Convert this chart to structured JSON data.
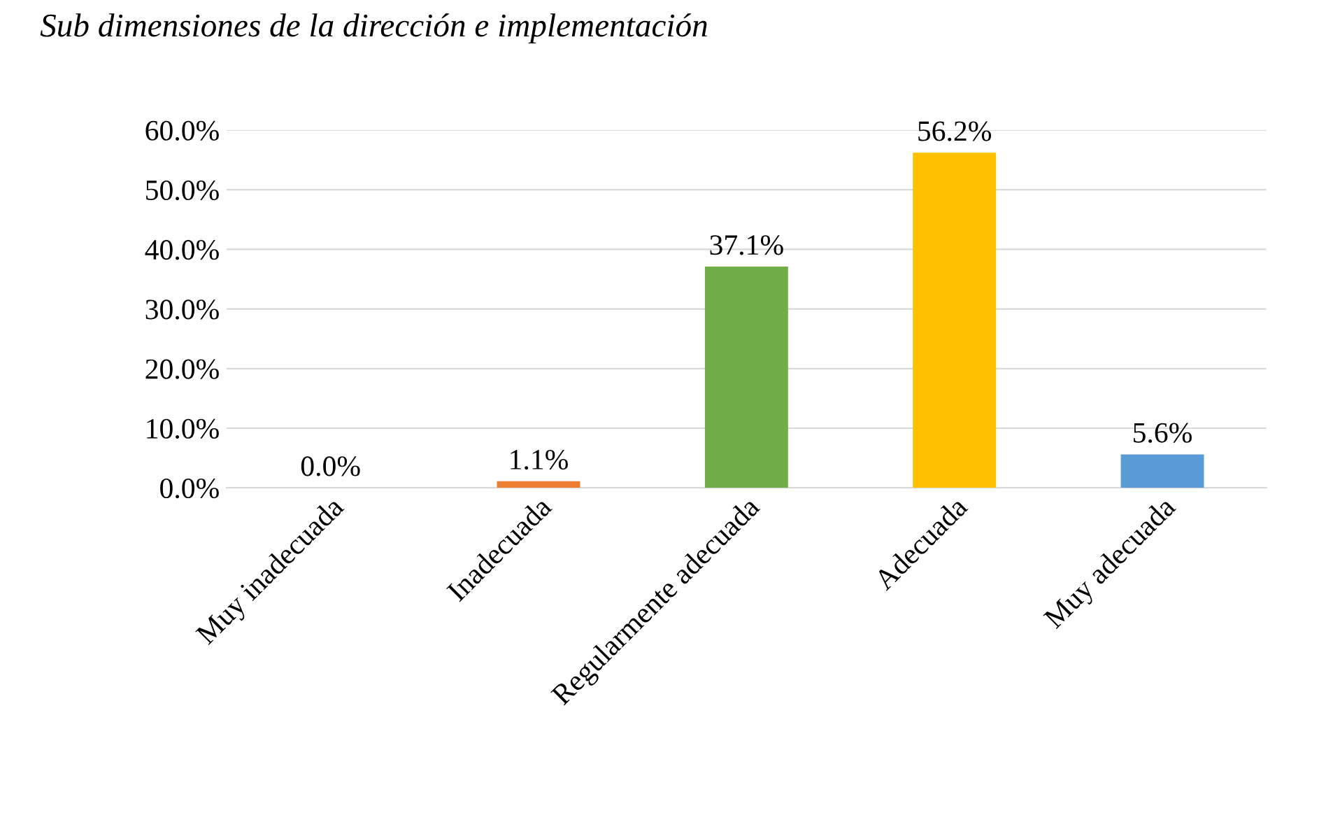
{
  "chart_data": {
    "type": "bar",
    "title": "Sub dimensiones de la dirección e implementación",
    "categories": [
      "Muy inadecuada",
      "Inadecuada",
      "Regularmente adecuada",
      "Adecuada",
      "Muy adecuada"
    ],
    "values": [
      0.0,
      1.1,
      37.1,
      56.2,
      5.6
    ],
    "value_labels": [
      "0.0%",
      "1.1%",
      "37.1%",
      "56.2%",
      "5.6%"
    ],
    "colors": [
      "#2f5597",
      "#ed7d31",
      "#70ad47",
      "#ffc000",
      "#5b9bd5"
    ],
    "ylim": [
      0,
      60
    ],
    "yticks": [
      {
        "value": 0,
        "label": "0.0%"
      },
      {
        "value": 10,
        "label": "10.0%"
      },
      {
        "value": 20,
        "label": "20.0%"
      },
      {
        "value": 30,
        "label": "30.0%"
      },
      {
        "value": 40,
        "label": "40.0%"
      },
      {
        "value": 50,
        "label": "50.0%"
      },
      {
        "value": 60,
        "label": "60.0%"
      }
    ],
    "grid": "y",
    "legend": false
  }
}
